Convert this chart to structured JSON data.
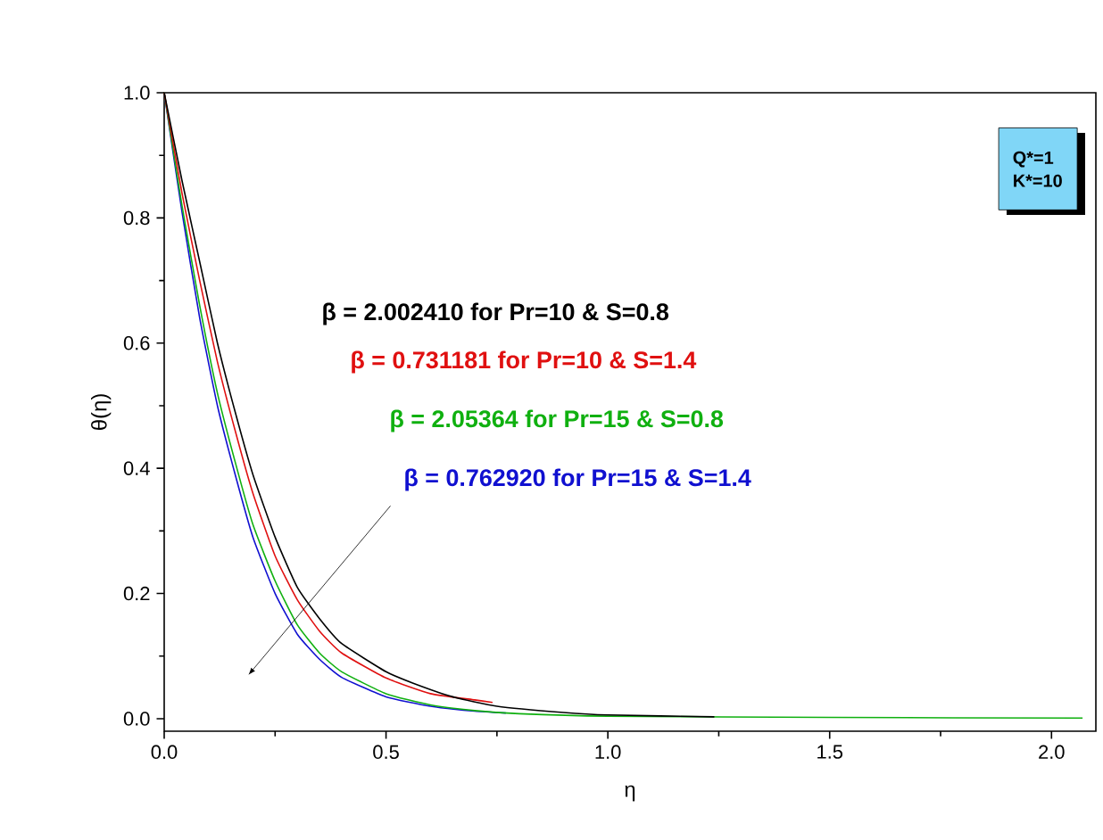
{
  "chart_data": {
    "type": "line",
    "xlabel": "η",
    "ylabel": "θ(η)",
    "xlim": [
      0,
      2.1
    ],
    "ylim": [
      -0.02,
      1.0
    ],
    "xticks": [
      {
        "value": 0,
        "label": "0.0"
      },
      {
        "value": 0.5,
        "label": "0.5"
      },
      {
        "value": 1,
        "label": "1.0"
      },
      {
        "value": 1.5,
        "label": "1.5"
      },
      {
        "value": 2,
        "label": "2.0"
      }
    ],
    "yticks": [
      {
        "value": 0,
        "label": "0.0"
      },
      {
        "value": 0.2,
        "label": "0.2"
      },
      {
        "value": 0.4,
        "label": "0.4"
      },
      {
        "value": 0.6,
        "label": "0.6"
      },
      {
        "value": 0.8,
        "label": "0.8"
      },
      {
        "value": 1,
        "label": "1.0"
      }
    ],
    "annotations": [
      "Q*=1",
      "K*=10"
    ],
    "series": [
      {
        "name": "β = 2.002410 for Pr=10 & S=0.8",
        "color": "#000000",
        "x": [
          0,
          0.04,
          0.08,
          0.12,
          0.16,
          0.2,
          0.25,
          0.3,
          0.35,
          0.4,
          0.5,
          0.56,
          0.65,
          0.75,
          0.9,
          1.0,
          1.24
        ],
        "values": [
          1,
          0.86,
          0.73,
          0.6,
          0.49,
          0.39,
          0.29,
          0.21,
          0.16,
          0.12,
          0.075,
          0.057,
          0.035,
          0.02,
          0.01,
          0.006,
          0.003
        ]
      },
      {
        "name": "β = 0.731181 for Pr=10 & S=1.4",
        "color": "#e01010",
        "x": [
          0,
          0.04,
          0.08,
          0.12,
          0.16,
          0.2,
          0.25,
          0.3,
          0.35,
          0.4,
          0.5,
          0.6,
          0.7,
          0.74
        ],
        "values": [
          1,
          0.84,
          0.7,
          0.57,
          0.46,
          0.36,
          0.26,
          0.19,
          0.14,
          0.105,
          0.065,
          0.04,
          0.03,
          0.026
        ]
      },
      {
        "name": "β = 2.05364 for Pr=15 & S=0.8",
        "color": "#10b010",
        "x": [
          0,
          0.04,
          0.08,
          0.12,
          0.16,
          0.2,
          0.25,
          0.3,
          0.35,
          0.4,
          0.5,
          0.6,
          0.7,
          0.8,
          1.0,
          1.5,
          2.07
        ],
        "values": [
          1,
          0.82,
          0.66,
          0.52,
          0.41,
          0.31,
          0.22,
          0.15,
          0.105,
          0.075,
          0.04,
          0.022,
          0.013,
          0.008,
          0.004,
          0.002,
          0.001
        ]
      },
      {
        "name": "β = 0.762920 for Pr=15 & S=1.4",
        "color": "#1010d0",
        "x": [
          0,
          0.04,
          0.08,
          0.12,
          0.16,
          0.2,
          0.25,
          0.3,
          0.35,
          0.4,
          0.5,
          0.6,
          0.7,
          0.77
        ],
        "values": [
          1,
          0.81,
          0.64,
          0.5,
          0.39,
          0.29,
          0.2,
          0.135,
          0.095,
          0.066,
          0.035,
          0.02,
          0.012,
          0.009
        ]
      }
    ]
  }
}
